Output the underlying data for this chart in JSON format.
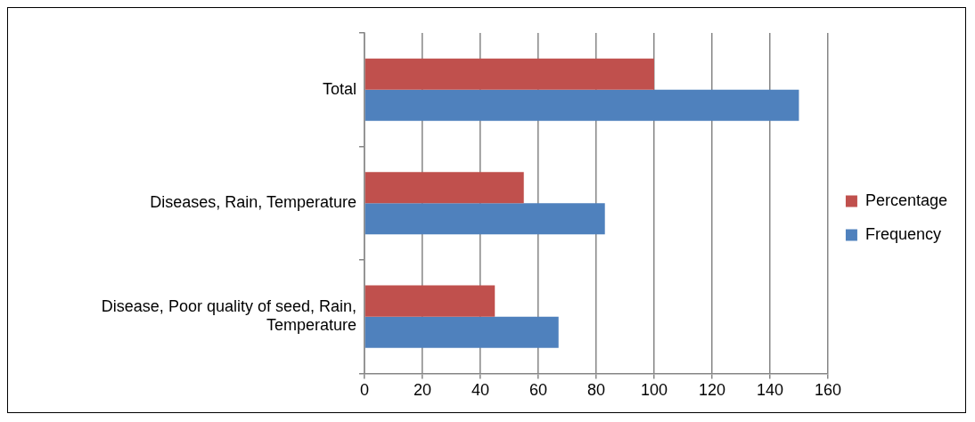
{
  "chart_data": {
    "type": "bar",
    "orientation": "horizontal",
    "categories": [
      "Total",
      "Diseases, Rain, Temperature",
      "Disease, Poor quality of seed, Rain, Temperature"
    ],
    "series": [
      {
        "name": "Percentage",
        "color": "#c0504d",
        "values": [
          100,
          55,
          45
        ]
      },
      {
        "name": "Frequency",
        "color": "#4f81bd",
        "values": [
          150,
          83,
          67
        ]
      }
    ],
    "xlim": [
      0,
      160
    ],
    "xticks": [
      0,
      20,
      40,
      60,
      80,
      100,
      120,
      140,
      160
    ],
    "grid": "x",
    "legend": "right"
  }
}
